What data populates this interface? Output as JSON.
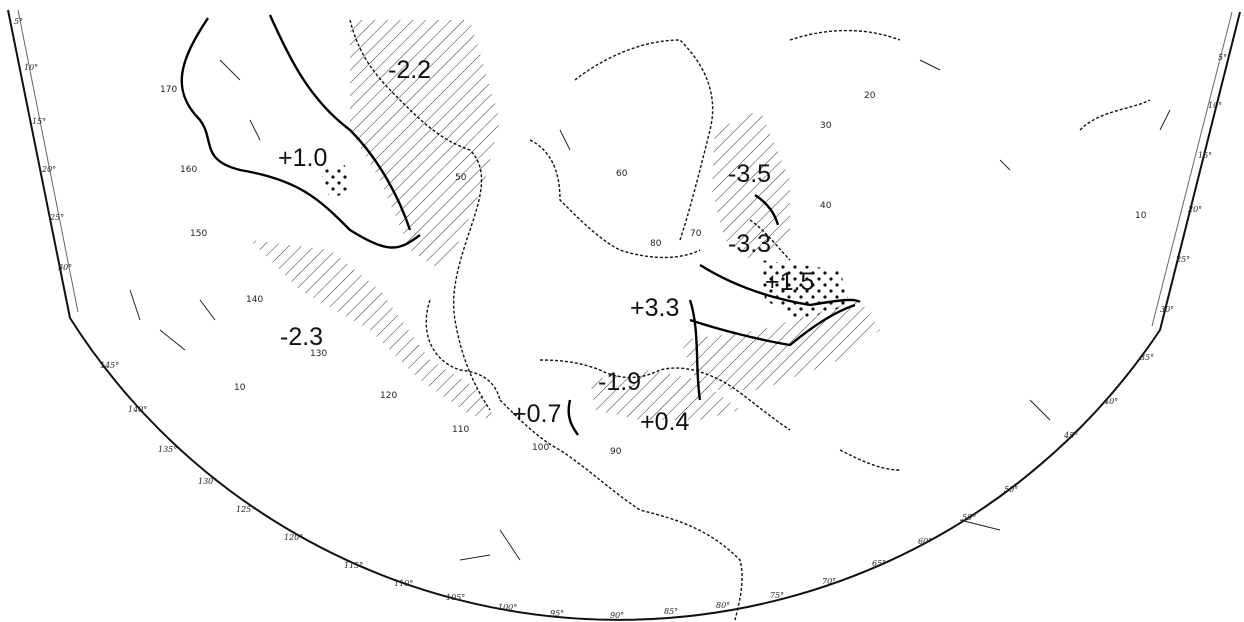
{
  "map": {
    "anomalies": [
      "-2.2",
      "+1.0",
      "-3.5",
      "-3.3",
      "+1.5",
      "+3.3",
      "-2.3",
      "-1.9",
      "+0.7",
      "+0.4"
    ],
    "isoline_labels": [
      "10",
      "20",
      "30",
      "40",
      "50",
      "60",
      "70",
      "80",
      "90",
      "100",
      "110",
      "120",
      "130",
      "140",
      "150",
      "160",
      "170"
    ],
    "latitude_labels": [
      "5°",
      "10°",
      "15°",
      "20°",
      "25°",
      "30°",
      "35°",
      "40°",
      "45°"
    ],
    "longitude_labels": [
      "145°",
      "140°",
      "135°",
      "130°",
      "125°",
      "120°",
      "115°",
      "110°",
      "105°",
      "100°",
      "95°",
      "90°",
      "85°",
      "80°",
      "75°",
      "70°",
      "65°",
      "60°",
      "55°",
      "50°"
    ]
  }
}
